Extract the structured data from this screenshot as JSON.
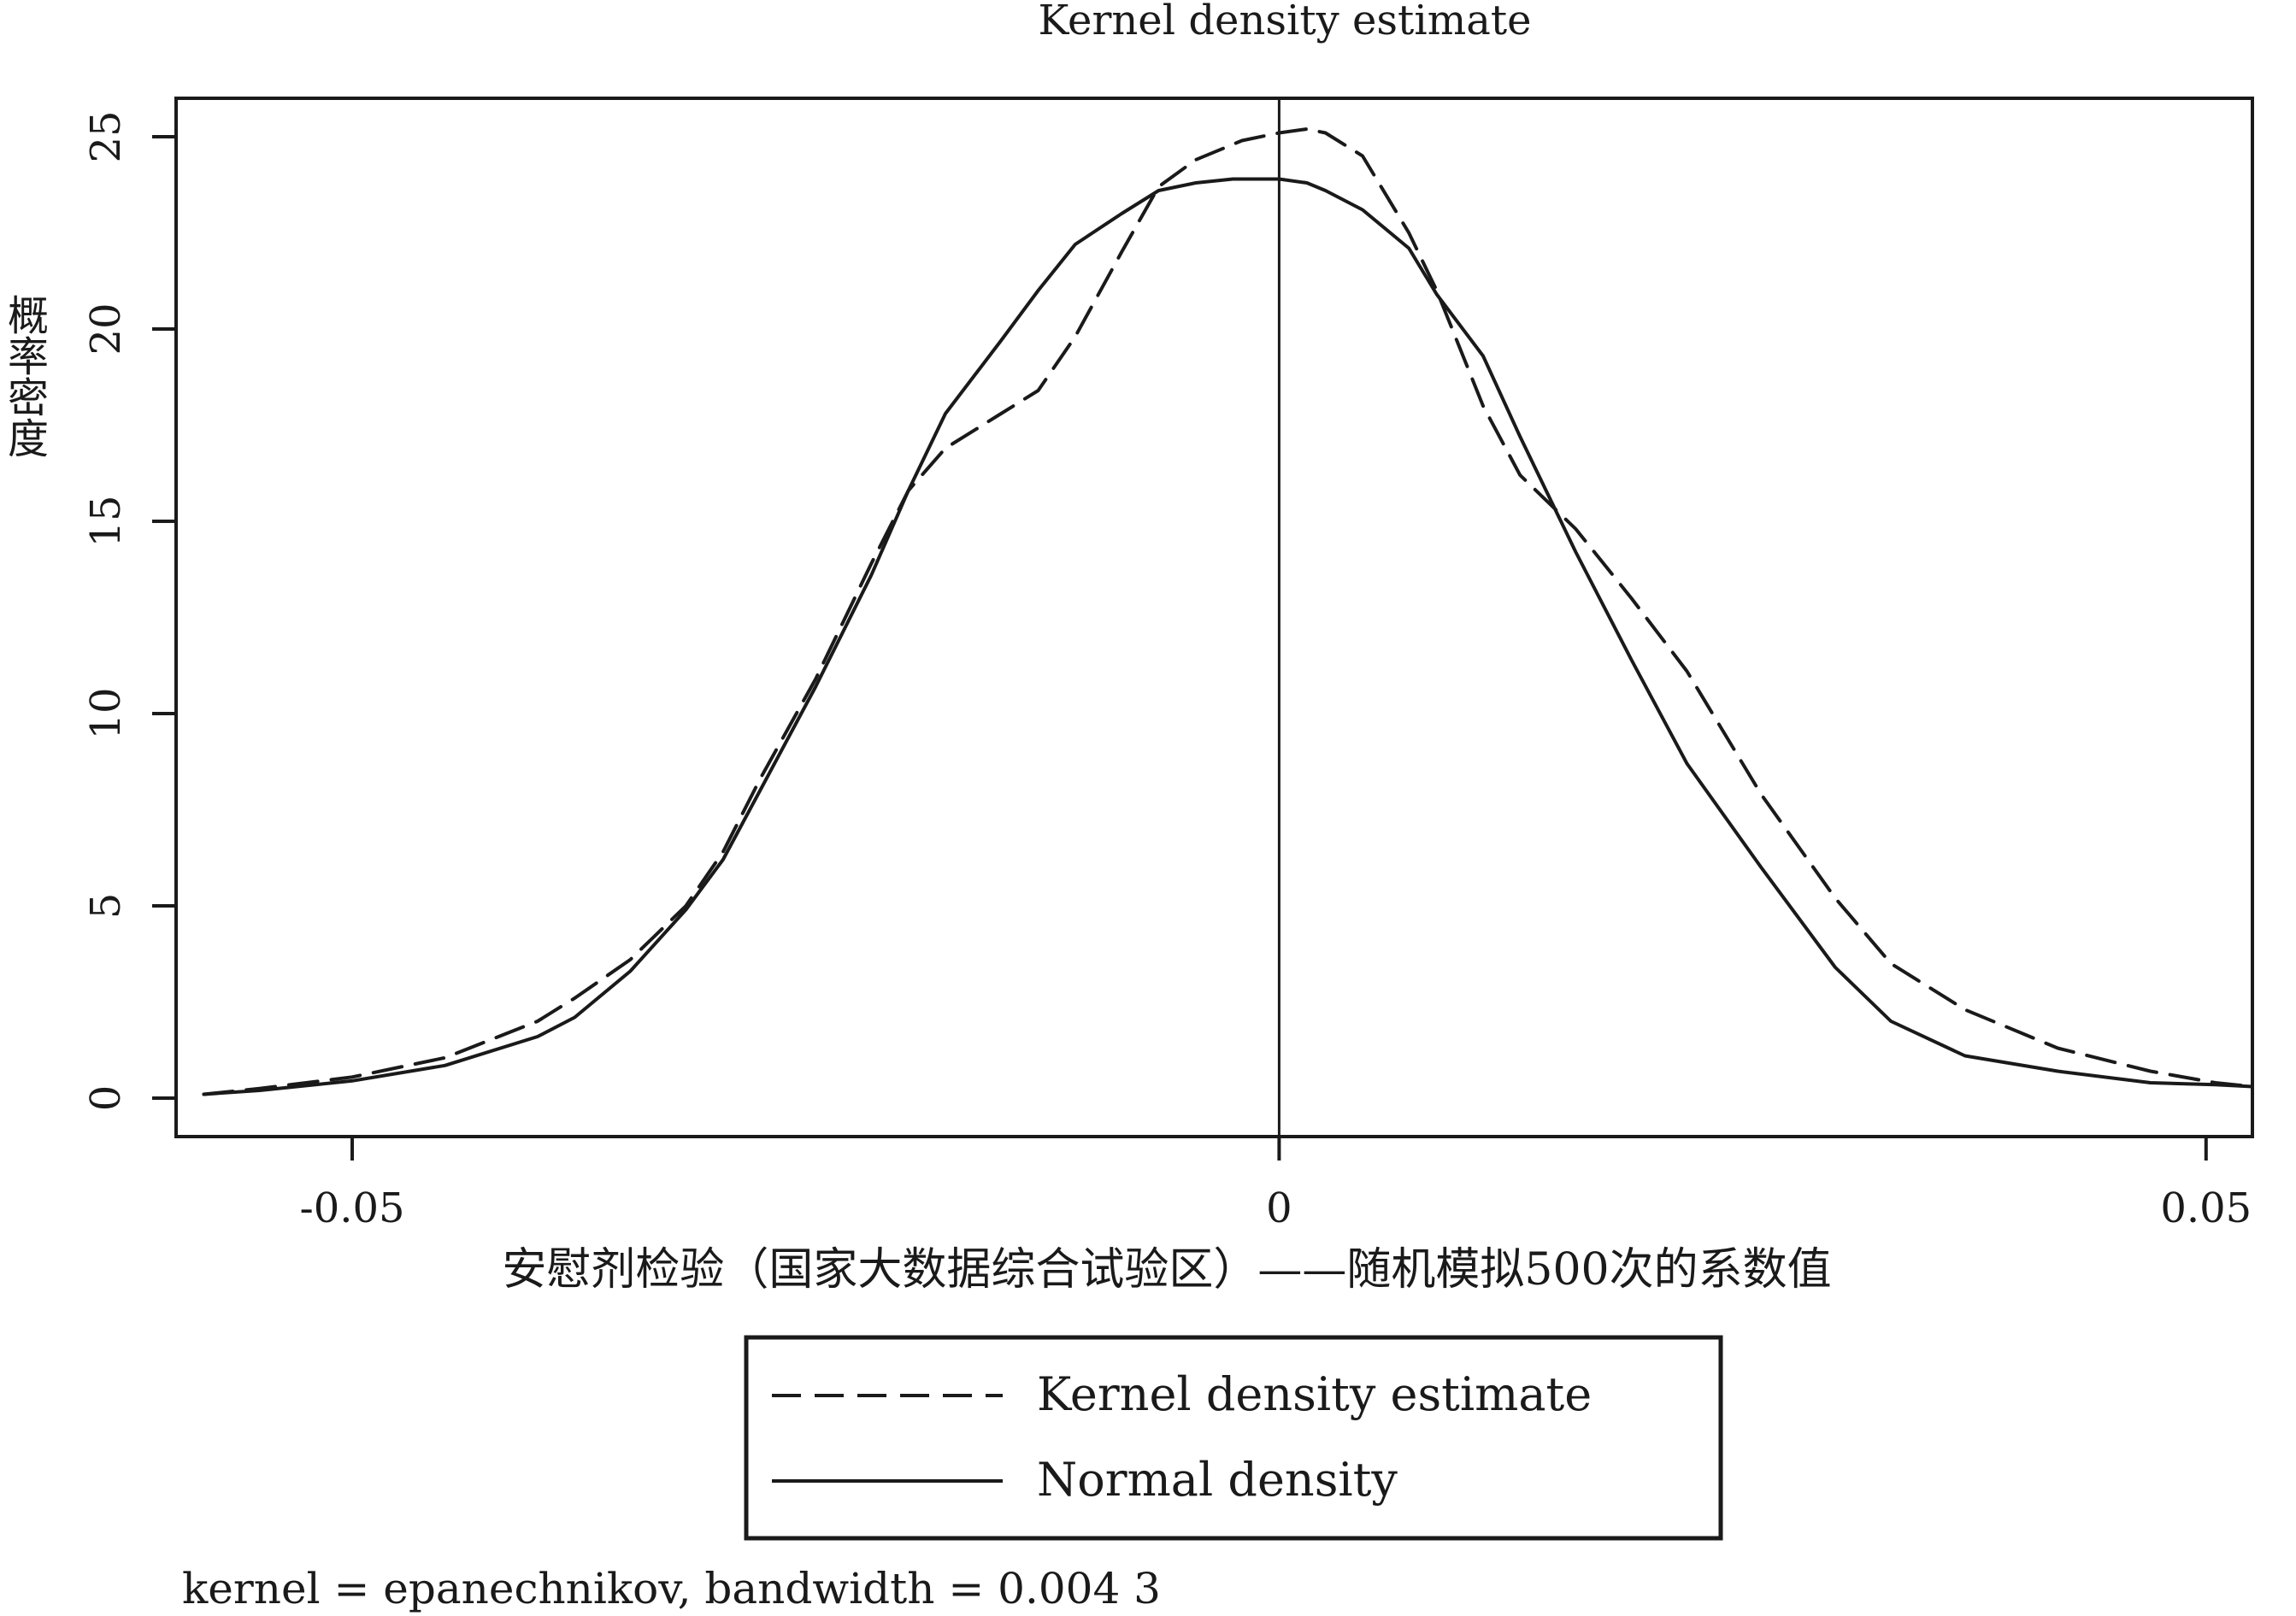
{
  "chart_data": {
    "type": "line",
    "title": "Kernel density estimate",
    "xlabel": "安慰剂检验（国家大数据综合试验区）——随机模拟500次的系数值",
    "ylabel": "概率密度",
    "xlim": [
      -0.0595,
      0.0525
    ],
    "ylim": [
      -1,
      26
    ],
    "x_ticks": [
      {
        "value": -0.05,
        "label": "-0.05"
      },
      {
        "value": 0,
        "label": "0"
      },
      {
        "value": 0.05,
        "label": "0.05"
      }
    ],
    "y_ticks": [
      {
        "value": 0,
        "label": "0"
      },
      {
        "value": 5,
        "label": "5"
      },
      {
        "value": 10,
        "label": "10"
      },
      {
        "value": 15,
        "label": "15"
      },
      {
        "value": 20,
        "label": "20"
      },
      {
        "value": 25,
        "label": "25"
      }
    ],
    "reference_line": {
      "x": 0
    },
    "grid": false,
    "legend_position": "bottom",
    "series": [
      {
        "name": "Kernel density estimate",
        "style": "dashed",
        "color": "#1a1a1a",
        "x": [
          -0.058,
          -0.055,
          -0.05,
          -0.045,
          -0.04,
          -0.038,
          -0.035,
          -0.032,
          -0.03,
          -0.028,
          -0.025,
          -0.022,
          -0.02,
          -0.018,
          -0.015,
          -0.013,
          -0.011,
          -0.0085,
          -0.0065,
          -0.0045,
          -0.002,
          0.0,
          0.0015,
          0.0025,
          0.0045,
          0.007,
          0.0085,
          0.011,
          0.013,
          0.016,
          0.019,
          0.022,
          0.026,
          0.03,
          0.033,
          0.037,
          0.042,
          0.047,
          0.0505,
          0.0525
        ],
        "y": [
          0.1,
          0.25,
          0.55,
          1.05,
          2.0,
          2.6,
          3.6,
          5.0,
          6.4,
          8.3,
          10.9,
          13.9,
          15.8,
          16.9,
          17.8,
          18.4,
          19.8,
          22.0,
          23.7,
          24.4,
          24.9,
          25.1,
          25.2,
          25.1,
          24.5,
          22.5,
          21.0,
          18.0,
          16.2,
          14.8,
          13.0,
          11.1,
          7.9,
          5.2,
          3.5,
          2.3,
          1.3,
          0.7,
          0.4,
          0.3
        ]
      },
      {
        "name": "Normal density",
        "style": "solid",
        "color": "#1a1a1a",
        "x": [
          -0.058,
          -0.055,
          -0.05,
          -0.045,
          -0.04,
          -0.038,
          -0.035,
          -0.032,
          -0.03,
          -0.028,
          -0.025,
          -0.022,
          -0.02,
          -0.018,
          -0.015,
          -0.013,
          -0.011,
          -0.0085,
          -0.0065,
          -0.0045,
          -0.0025,
          0.0,
          0.0015,
          0.0025,
          0.0045,
          0.007,
          0.0085,
          0.011,
          0.013,
          0.016,
          0.019,
          0.022,
          0.026,
          0.03,
          0.033,
          0.037,
          0.042,
          0.047,
          0.0505,
          0.0525
        ],
        "y": [
          0.1,
          0.2,
          0.45,
          0.85,
          1.6,
          2.1,
          3.3,
          4.9,
          6.2,
          8.0,
          10.7,
          13.6,
          15.8,
          17.8,
          19.7,
          21.0,
          22.2,
          23.0,
          23.6,
          23.8,
          23.9,
          23.9,
          23.8,
          23.6,
          23.1,
          22.1,
          20.9,
          19.3,
          17.2,
          14.2,
          11.4,
          8.7,
          6.0,
          3.4,
          2.0,
          1.1,
          0.7,
          0.4,
          0.35,
          0.3
        ]
      }
    ],
    "note": "kernel = epanechnikov, bandwidth = 0.004 3"
  }
}
